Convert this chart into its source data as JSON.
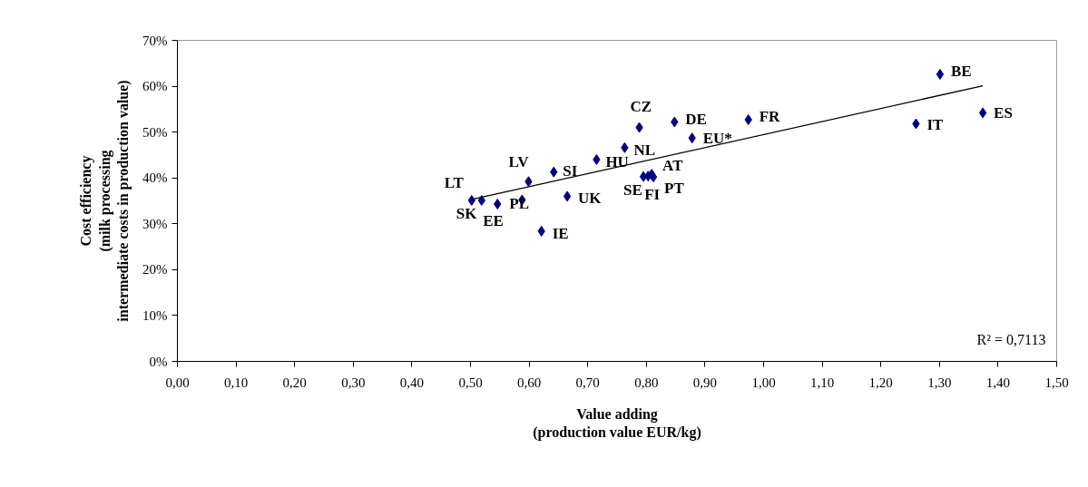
{
  "chart_data": {
    "type": "scatter",
    "ylabel": "Cost efficiency\n(milk processing\nintermediate costs in production value)",
    "xlabel": "Value adding\n(production value EUR/kg)",
    "xlim": [
      0,
      1.5
    ],
    "ylim": [
      0,
      0.7
    ],
    "xticks": [
      {
        "value": 0,
        "label": "0,00"
      },
      {
        "value": 0.1,
        "label": "0,10"
      },
      {
        "value": 0.2,
        "label": "0,20"
      },
      {
        "value": 0.3,
        "label": "0,30"
      },
      {
        "value": 0.4,
        "label": "0,40"
      },
      {
        "value": 0.5,
        "label": "0,50"
      },
      {
        "value": 0.6,
        "label": "0,60"
      },
      {
        "value": 0.7,
        "label": "0,70"
      },
      {
        "value": 0.8,
        "label": "0,80"
      },
      {
        "value": 0.9,
        "label": "0,90"
      },
      {
        "value": 1.0,
        "label": "1,00"
      },
      {
        "value": 1.1,
        "label": "1,10"
      },
      {
        "value": 1.2,
        "label": "1,20"
      },
      {
        "value": 1.3,
        "label": "1,30"
      },
      {
        "value": 1.4,
        "label": "1,40"
      },
      {
        "value": 1.5,
        "label": "1,50"
      }
    ],
    "yticks": [
      {
        "value": 0,
        "label": "0%"
      },
      {
        "value": 0.1,
        "label": "10%"
      },
      {
        "value": 0.2,
        "label": "20%"
      },
      {
        "value": 0.3,
        "label": "30%"
      },
      {
        "value": 0.4,
        "label": "40%"
      },
      {
        "value": 0.5,
        "label": "50%"
      },
      {
        "value": 0.6,
        "label": "60%"
      },
      {
        "value": 0.7,
        "label": "70%"
      }
    ],
    "grid": false,
    "series": [
      {
        "type": "scatter",
        "marker": "diamond",
        "color": "#000080",
        "x": [
          0.502,
          0.519,
          0.546,
          0.588,
          0.621,
          0.599,
          0.642,
          0.665,
          0.715,
          0.763,
          0.788,
          0.848,
          0.878,
          0.974,
          0.795,
          0.803,
          0.809,
          0.812,
          1.301,
          1.26,
          1.374
        ],
        "values": [
          0.351,
          0.351,
          0.343,
          0.352,
          0.284,
          0.392,
          0.413,
          0.36,
          0.44,
          0.466,
          0.51,
          0.522,
          0.487,
          0.527,
          0.403,
          0.404,
          0.408,
          0.402,
          0.626,
          0.518,
          0.542
        ]
      },
      {
        "type": "line",
        "color": "#000000",
        "x": [
          0.502,
          1.374
        ],
        "values": [
          0.353,
          0.601
        ]
      }
    ],
    "annotations": [
      {
        "text": "LT",
        "x": 0.502,
        "y": 0.351
      },
      {
        "text": "SK",
        "x": 0.519,
        "y": 0.351
      },
      {
        "text": "EE",
        "x": 0.546,
        "y": 0.343
      },
      {
        "text": "PL",
        "x": 0.588,
        "y": 0.352
      },
      {
        "text": "IE",
        "x": 0.621,
        "y": 0.284
      },
      {
        "text": "LV",
        "x": 0.599,
        "y": 0.392
      },
      {
        "text": "SI",
        "x": 0.642,
        "y": 0.413
      },
      {
        "text": "UK",
        "x": 0.665,
        "y": 0.36
      },
      {
        "text": "HU",
        "x": 0.715,
        "y": 0.44
      },
      {
        "text": "NL",
        "x": 0.763,
        "y": 0.466
      },
      {
        "text": "CZ",
        "x": 0.788,
        "y": 0.51
      },
      {
        "text": "DE",
        "x": 0.848,
        "y": 0.522
      },
      {
        "text": "EU*",
        "x": 0.878,
        "y": 0.487
      },
      {
        "text": "FR",
        "x": 0.974,
        "y": 0.527
      },
      {
        "text": "SE",
        "x": 0.795,
        "y": 0.403
      },
      {
        "text": "FI",
        "x": 0.803,
        "y": 0.404
      },
      {
        "text": "AT",
        "x": 0.809,
        "y": 0.408
      },
      {
        "text": "PT",
        "x": 0.812,
        "y": 0.402
      },
      {
        "text": "BE",
        "x": 1.301,
        "y": 0.626
      },
      {
        "text": "IT",
        "x": 1.26,
        "y": 0.518
      },
      {
        "text": "ES",
        "x": 1.374,
        "y": 0.542
      },
      "R² = 0,7113"
    ]
  }
}
